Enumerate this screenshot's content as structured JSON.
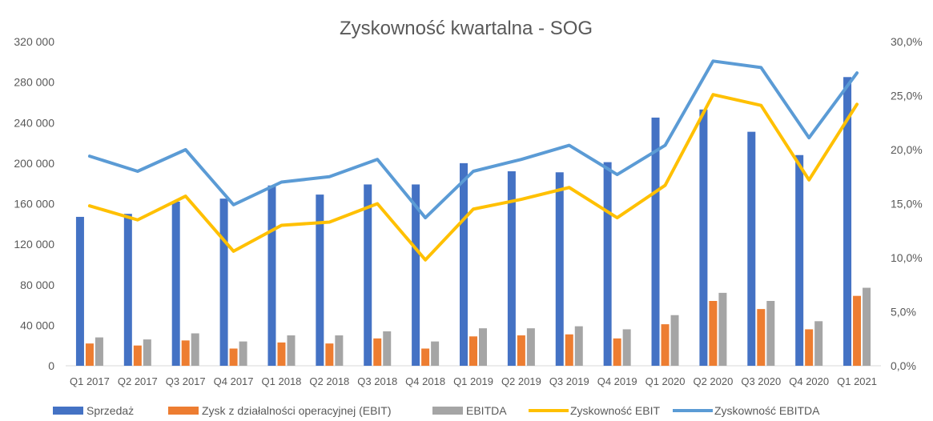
{
  "chart_data": {
    "type": "bar",
    "title": "Zyskowność kwartalna - SOG",
    "categories": [
      "Q1 2017",
      "Q2 2017",
      "Q3 2017",
      "Q4 2017",
      "Q1 2018",
      "Q2 2018",
      "Q3 2018",
      "Q4 2018",
      "Q1 2019",
      "Q2 2019",
      "Q3 2019",
      "Q4 2019",
      "Q1 2020",
      "Q2 2020",
      "Q3 2020",
      "Q4 2020",
      "Q1 2021"
    ],
    "y_left": {
      "ylim": [
        0,
        320000
      ],
      "ticks": [
        0,
        40000,
        80000,
        120000,
        160000,
        200000,
        240000,
        280000,
        320000
      ],
      "tick_labels": [
        "0",
        "40 000",
        "80 000",
        "120 000",
        "160 000",
        "200 000",
        "240 000",
        "280 000",
        "320 000"
      ]
    },
    "y_right": {
      "ylim": [
        0,
        30
      ],
      "ticks": [
        0,
        5,
        10,
        15,
        20,
        25,
        30
      ],
      "tick_labels": [
        "0,0%",
        "5,0%",
        "10,0%",
        "15,0%",
        "20,0%",
        "25,0%",
        "30,0%"
      ]
    },
    "series": [
      {
        "name": "Sprzedaż",
        "type": "bar",
        "axis": "left",
        "color": "#4472C4",
        "values": [
          147000,
          150000,
          162000,
          165000,
          178000,
          169000,
          179000,
          179000,
          200000,
          192000,
          191000,
          201000,
          245000,
          253000,
          231000,
          208000,
          285000
        ]
      },
      {
        "name": "Zysk z działalności operacyjnej (EBIT)",
        "type": "bar",
        "axis": "left",
        "color": "#ED7D31",
        "values": [
          22000,
          20000,
          25000,
          17000,
          23000,
          22000,
          27000,
          17000,
          29000,
          30000,
          31000,
          27000,
          41000,
          64000,
          56000,
          36000,
          69000
        ]
      },
      {
        "name": "EBITDA",
        "type": "bar",
        "axis": "left",
        "color": "#A5A5A5",
        "values": [
          28000,
          26000,
          32000,
          24000,
          30000,
          30000,
          34000,
          24000,
          37000,
          37000,
          39000,
          36000,
          50000,
          72000,
          64000,
          44000,
          77000
        ]
      },
      {
        "name": "Zyskowność EBIT",
        "type": "line",
        "axis": "right",
        "color": "#FFC000",
        "values": [
          14.8,
          13.5,
          15.7,
          10.6,
          13.0,
          13.3,
          15.0,
          9.8,
          14.5,
          15.4,
          16.5,
          13.7,
          16.7,
          25.1,
          24.1,
          17.2,
          24.2
        ]
      },
      {
        "name": "Zyskowność EBITDA",
        "type": "line",
        "axis": "right",
        "color": "#5B9BD5",
        "values": [
          19.4,
          18.0,
          20.0,
          14.9,
          17.0,
          17.5,
          19.1,
          13.7,
          18.0,
          19.1,
          20.4,
          17.7,
          20.4,
          28.2,
          27.6,
          21.1,
          27.1
        ]
      }
    ],
    "grid": false,
    "legend_position": "bottom"
  }
}
